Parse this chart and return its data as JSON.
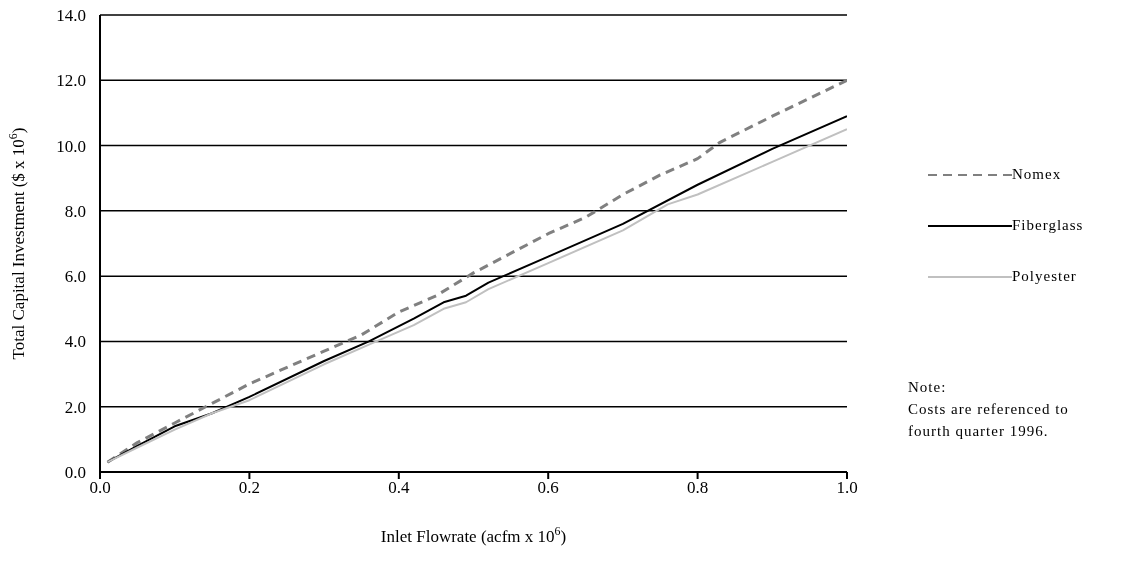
{
  "chart_data": {
    "type": "line",
    "xlabel": "Inlet Flowrate (acfm x 10$^{6}$)",
    "ylabel": "Total Capital Investment ($ x 10$^{6}$)",
    "xlim": [
      0,
      1
    ],
    "xticks": [
      {
        "value": 0,
        "label": "0.0"
      },
      {
        "value": 0.2,
        "label": "0.2"
      },
      {
        "value": 0.4,
        "label": "0.4"
      },
      {
        "value": 0.6,
        "label": "0.6"
      },
      {
        "value": 0.8,
        "label": "0.8"
      },
      {
        "value": 1,
        "label": "1.0"
      }
    ],
    "ylim": [
      0,
      14
    ],
    "yticks": [
      {
        "value": 0,
        "label": "0.0"
      },
      {
        "value": 2,
        "label": "2.0"
      },
      {
        "value": 4,
        "label": "4.0"
      },
      {
        "value": 6,
        "label": "6.0"
      },
      {
        "value": 8,
        "label": "8.0"
      },
      {
        "value": 10,
        "label": "10.0"
      },
      {
        "value": 12,
        "label": "12.0"
      },
      {
        "value": 14,
        "label": "14.0"
      }
    ],
    "grid": "y",
    "legend": "right",
    "marker": "none",
    "series": [
      {
        "name": "Nomex",
        "color": "#808080",
        "line_style": "dashed",
        "x": [
          0.01,
          0.05,
          0.1,
          0.15,
          0.2,
          0.3,
          0.35,
          0.4,
          0.45,
          0.5,
          0.6,
          0.65,
          0.7,
          0.75,
          0.8,
          0.83,
          0.9,
          1.0
        ],
        "values": [
          0.3,
          0.9,
          1.5,
          2.1,
          2.7,
          3.7,
          4.2,
          4.9,
          5.4,
          6.1,
          7.3,
          7.8,
          8.5,
          9.1,
          9.6,
          10.1,
          10.9,
          12.0
        ]
      },
      {
        "name": "Fiberglass",
        "color": "#000000",
        "line_style": "solid",
        "x": [
          0.01,
          0.05,
          0.1,
          0.15,
          0.2,
          0.3,
          0.36,
          0.42,
          0.46,
          0.49,
          0.52,
          0.6,
          0.7,
          0.8,
          0.9,
          1.0
        ],
        "values": [
          0.3,
          0.8,
          1.4,
          1.8,
          2.3,
          3.4,
          4.0,
          4.7,
          5.2,
          5.4,
          5.8,
          6.6,
          7.6,
          8.8,
          9.9,
          10.9
        ]
      },
      {
        "name": "Polyester",
        "color": "#c0c0c0",
        "line_style": "solid",
        "x": [
          0.01,
          0.05,
          0.1,
          0.15,
          0.2,
          0.3,
          0.36,
          0.42,
          0.46,
          0.49,
          0.52,
          0.6,
          0.7,
          0.76,
          0.8,
          0.9,
          1.0
        ],
        "values": [
          0.3,
          0.75,
          1.3,
          1.8,
          2.2,
          3.3,
          3.9,
          4.5,
          5.0,
          5.2,
          5.6,
          6.4,
          7.4,
          8.2,
          8.5,
          9.5,
          10.5
        ]
      }
    ],
    "annotations": [
      "Note:",
      "Costs are referenced to",
      "fourth quarter 1996."
    ]
  }
}
